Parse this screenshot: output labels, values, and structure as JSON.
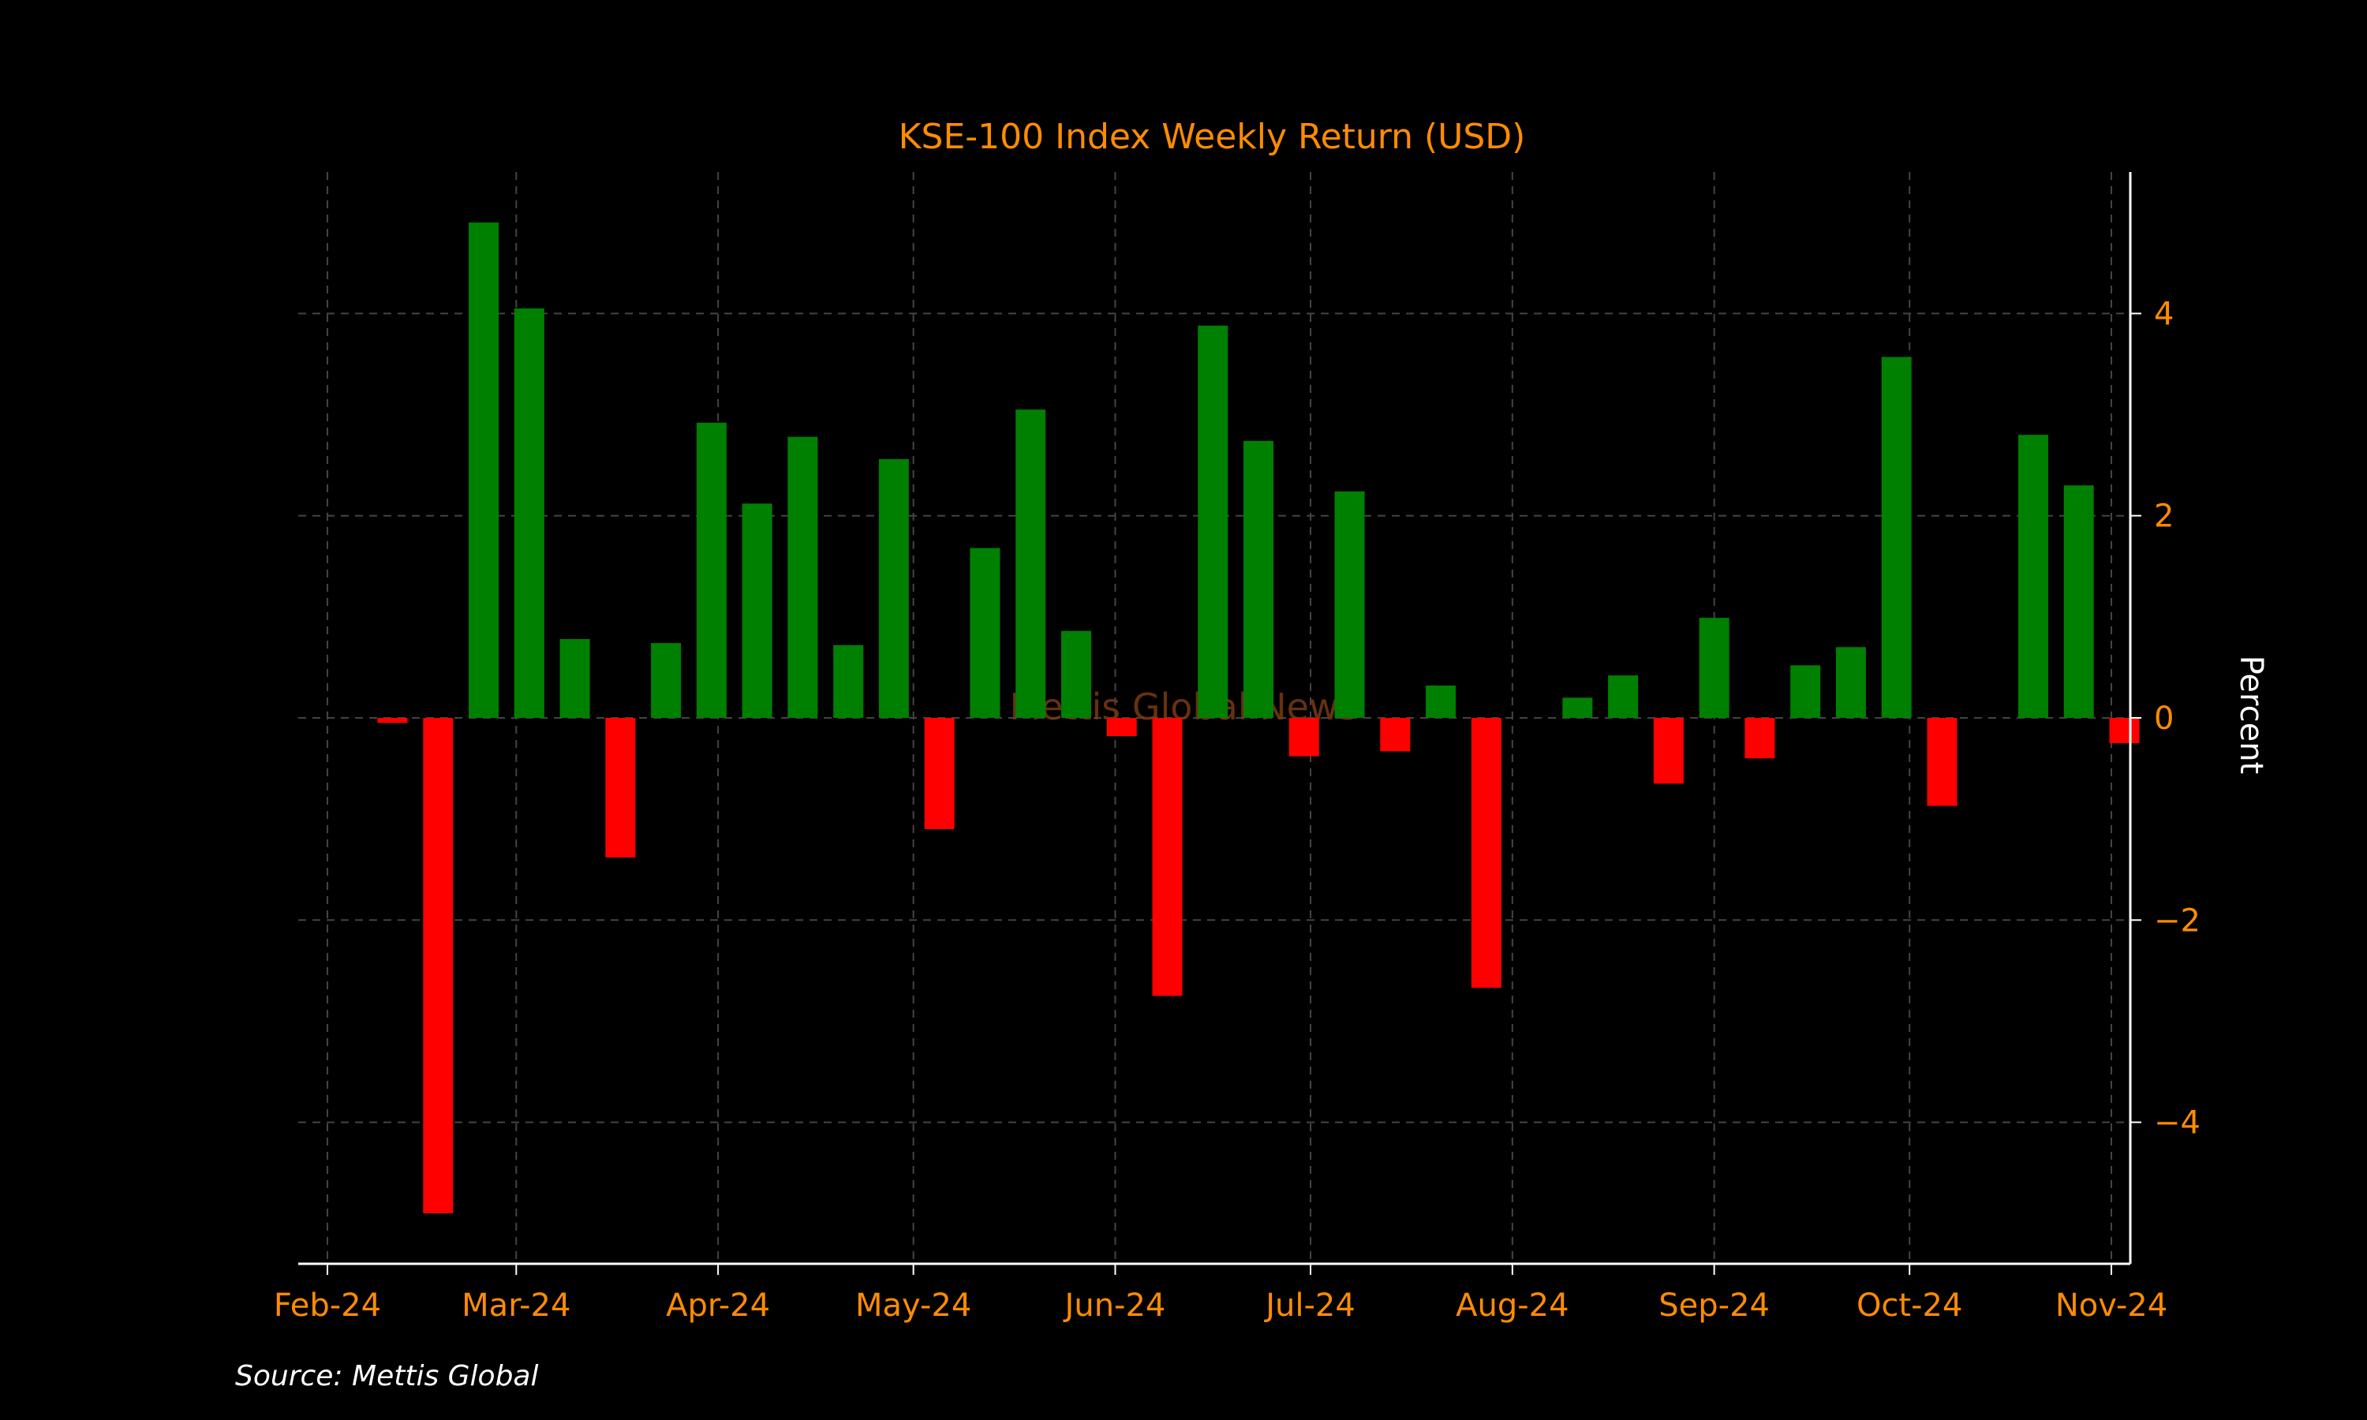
{
  "chart_data": {
    "type": "bar",
    "title": "KSE-100 Index Weekly Return (USD)",
    "ylabel": "Percent",
    "source": "Source: Mettis Global",
    "watermark": "Mettis Global News",
    "ylim": [
      -5.4,
      5.4
    ],
    "xlim": [
      "2024-02-01",
      "2024-11-01"
    ],
    "y_ticks": [
      4,
      2,
      0,
      -2,
      -4
    ],
    "y_tick_labels": [
      "4",
      "2",
      "0",
      "−2",
      "−4"
    ],
    "x_ticks": [
      {
        "date": "2024-02-01",
        "label": "Feb-24"
      },
      {
        "date": "2024-03-01",
        "label": "Mar-24"
      },
      {
        "date": "2024-04-01",
        "label": "Apr-24"
      },
      {
        "date": "2024-05-01",
        "label": "May-24"
      },
      {
        "date": "2024-06-01",
        "label": "Jun-24"
      },
      {
        "date": "2024-07-01",
        "label": "Jul-24"
      },
      {
        "date": "2024-08-01",
        "label": "Aug-24"
      },
      {
        "date": "2024-09-01",
        "label": "Sep-24"
      },
      {
        "date": "2024-10-01",
        "label": "Oct-24"
      },
      {
        "date": "2024-11-01",
        "label": "Nov-24"
      }
    ],
    "grid": true,
    "colors": {
      "positive": "#008000",
      "negative": "#ff0000",
      "background": "#000000",
      "accent": "#ff8c00"
    },
    "series": [
      {
        "points": [
          {
            "date": "2024-02-11",
            "value": -0.05
          },
          {
            "date": "2024-02-18",
            "value": -4.9
          },
          {
            "date": "2024-02-25",
            "value": 4.9
          },
          {
            "date": "2024-03-03",
            "value": 4.05
          },
          {
            "date": "2024-03-10",
            "value": 0.78
          },
          {
            "date": "2024-03-17",
            "value": -1.38
          },
          {
            "date": "2024-03-24",
            "value": 0.74
          },
          {
            "date": "2024-03-31",
            "value": 2.92
          },
          {
            "date": "2024-04-07",
            "value": 2.12
          },
          {
            "date": "2024-04-14",
            "value": 2.78
          },
          {
            "date": "2024-04-21",
            "value": 0.72
          },
          {
            "date": "2024-04-28",
            "value": 2.56
          },
          {
            "date": "2024-05-05",
            "value": -1.1
          },
          {
            "date": "2024-05-12",
            "value": 1.68
          },
          {
            "date": "2024-05-19",
            "value": 3.05
          },
          {
            "date": "2024-05-26",
            "value": 0.86
          },
          {
            "date": "2024-06-02",
            "value": -0.18
          },
          {
            "date": "2024-06-09",
            "value": -2.75
          },
          {
            "date": "2024-06-16",
            "value": 3.88
          },
          {
            "date": "2024-06-23",
            "value": 2.74
          },
          {
            "date": "2024-06-30",
            "value": -0.38
          },
          {
            "date": "2024-07-07",
            "value": 2.24
          },
          {
            "date": "2024-07-14",
            "value": -0.33
          },
          {
            "date": "2024-07-21",
            "value": 0.32
          },
          {
            "date": "2024-07-28",
            "value": -2.67
          },
          {
            "date": "2024-08-04",
            "value": 0.0
          },
          {
            "date": "2024-08-11",
            "value": 0.2
          },
          {
            "date": "2024-08-18",
            "value": 0.42
          },
          {
            "date": "2024-08-25",
            "value": -0.65
          },
          {
            "date": "2024-09-01",
            "value": 0.99
          },
          {
            "date": "2024-09-08",
            "value": -0.4
          },
          {
            "date": "2024-09-15",
            "value": 0.52
          },
          {
            "date": "2024-09-22",
            "value": 0.7
          },
          {
            "date": "2024-09-29",
            "value": 3.57
          },
          {
            "date": "2024-10-06",
            "value": -0.87
          },
          {
            "date": "2024-10-13",
            "value": 0.0
          },
          {
            "date": "2024-10-20",
            "value": 2.8
          },
          {
            "date": "2024-10-27",
            "value": 2.3
          },
          {
            "date": "2024-11-03",
            "value": -0.25
          }
        ]
      }
    ]
  }
}
